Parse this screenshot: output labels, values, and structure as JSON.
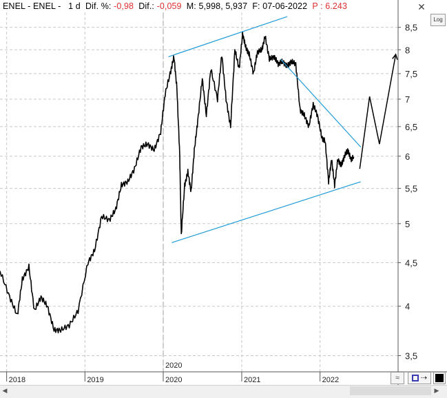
{
  "header": {
    "symbol": "ENEL - ENEL -",
    "period": "1 d",
    "dif_pct_label": "Dif. %:",
    "dif_pct_value": "-0,98",
    "dif_label": "Dif.:",
    "dif_value": "-0,059",
    "m_label": "M:",
    "m_value": "5,998",
    "m2_value": "5,937",
    "f_label": "F:",
    "date_value": "07-06-2022",
    "p_label": "P :",
    "p_value": "6.243"
  },
  "buttons": {
    "close": "✕",
    "log": "Log",
    "wave": "≈",
    "save": "⇢",
    "color_swatch": "#000000"
  },
  "colors": {
    "price": "#000000",
    "trendline": "#1e9bd7",
    "grid": "#c8c8c8",
    "separator": "#a0a0a0",
    "projection": "#000000"
  },
  "chart_data": {
    "type": "line",
    "title": "",
    "xlabel": "",
    "ylabel": "",
    "y_scale": "log",
    "ylim": [
      3.35,
      8.85
    ],
    "xlim": [
      "2017-12-01",
      "2022-12-31"
    ],
    "y_ticks": [
      {
        "value": 3.5,
        "label": "3,5"
      },
      {
        "value": 4,
        "label": "4"
      },
      {
        "value": 4.5,
        "label": "4,5"
      },
      {
        "value": 5,
        "label": "5"
      },
      {
        "value": 5.5,
        "label": "5,5"
      },
      {
        "value": 6,
        "label": "6"
      },
      {
        "value": 6.5,
        "label": "6,5"
      },
      {
        "value": 7,
        "label": "7"
      },
      {
        "value": 7.5,
        "label": "7,5"
      },
      {
        "value": 8,
        "label": "8"
      },
      {
        "value": 8.5,
        "label": "8,5"
      }
    ],
    "x_ticks": [
      {
        "value": "2018-01-01",
        "label": "2018"
      },
      {
        "value": "2019-01-01",
        "label": "2019"
      },
      {
        "value": "2020-01-01",
        "label": "2020"
      },
      {
        "value": "2021-01-01",
        "label": "2021"
      },
      {
        "value": "2022-01-01",
        "label": "2022"
      }
    ],
    "year_marker": {
      "value": "2020-01-01",
      "label": "2020"
    },
    "grid": true,
    "series": [
      {
        "type": "price",
        "x": [
          "2017-12-01",
          "2018-01-15",
          "2018-02-20",
          "2018-03-15",
          "2018-04-15",
          "2018-05-10",
          "2018-06-10",
          "2018-07-10",
          "2018-08-10",
          "2018-09-10",
          "2018-10-20",
          "2018-11-30",
          "2019-01-15",
          "2019-02-15",
          "2019-03-20",
          "2019-04-25",
          "2019-05-25",
          "2019-06-20",
          "2019-07-20",
          "2019-08-20",
          "2019-09-20",
          "2019-10-20",
          "2019-11-20",
          "2019-12-20",
          "2020-01-10",
          "2020-02-05",
          "2020-02-20",
          "2020-03-05",
          "2020-03-18",
          "2020-03-25",
          "2020-04-10",
          "2020-04-25",
          "2020-05-10",
          "2020-05-25",
          "2020-06-10",
          "2020-07-01",
          "2020-07-20",
          "2020-08-10",
          "2020-09-10",
          "2020-09-30",
          "2020-10-20",
          "2020-11-10",
          "2020-11-30",
          "2020-12-20",
          "2021-01-05",
          "2021-01-20",
          "2021-02-05",
          "2021-02-25",
          "2021-03-15",
          "2021-04-05",
          "2021-04-20",
          "2021-05-10",
          "2021-06-01",
          "2021-06-20",
          "2021-07-10",
          "2021-08-01",
          "2021-08-20",
          "2021-09-10",
          "2021-09-30",
          "2021-10-20",
          "2021-11-10",
          "2021-11-30",
          "2021-12-20",
          "2022-01-10",
          "2022-01-25",
          "2022-02-10",
          "2022-02-24",
          "2022-03-10",
          "2022-03-25",
          "2022-04-10",
          "2022-04-25",
          "2022-05-10",
          "2022-05-25",
          "2022-06-07"
        ],
        "y": [
          4.4,
          4.1,
          3.9,
          4.3,
          4.45,
          3.95,
          4.1,
          4.0,
          3.75,
          3.75,
          3.8,
          3.95,
          4.5,
          4.65,
          5.1,
          5.05,
          5.2,
          5.55,
          5.6,
          5.8,
          6.15,
          6.2,
          6.1,
          6.4,
          7.1,
          7.55,
          7.85,
          7.2,
          6.0,
          4.85,
          5.55,
          5.75,
          5.45,
          6.1,
          6.6,
          7.4,
          6.7,
          7.6,
          7.0,
          7.9,
          7.0,
          6.5,
          8.0,
          7.6,
          8.35,
          8.05,
          7.9,
          7.5,
          7.95,
          8.0,
          8.3,
          7.8,
          7.85,
          7.7,
          7.75,
          7.65,
          7.75,
          7.7,
          6.8,
          6.7,
          6.5,
          6.9,
          6.7,
          6.3,
          6.25,
          5.6,
          5.95,
          5.55,
          5.95,
          5.85,
          6.0,
          6.1,
          5.95,
          5.99
        ]
      },
      {
        "type": "upper-channel",
        "x": [
          "2020-01-25",
          "2021-08-01"
        ],
        "y": [
          7.85,
          8.75
        ]
      },
      {
        "type": "lower-channel",
        "x": [
          "2020-02-10",
          "2022-07-10"
        ],
        "y": [
          4.75,
          5.6
        ]
      },
      {
        "type": "resistance",
        "x": [
          "2021-07-01",
          "2022-07-10"
        ],
        "y": [
          7.8,
          6.15
        ]
      },
      {
        "type": "projection",
        "x": [
          "2022-07-05",
          "2022-08-20",
          "2022-10-05",
          "2022-12-20"
        ],
        "y": [
          5.8,
          7.05,
          6.2,
          7.9
        ]
      }
    ]
  }
}
